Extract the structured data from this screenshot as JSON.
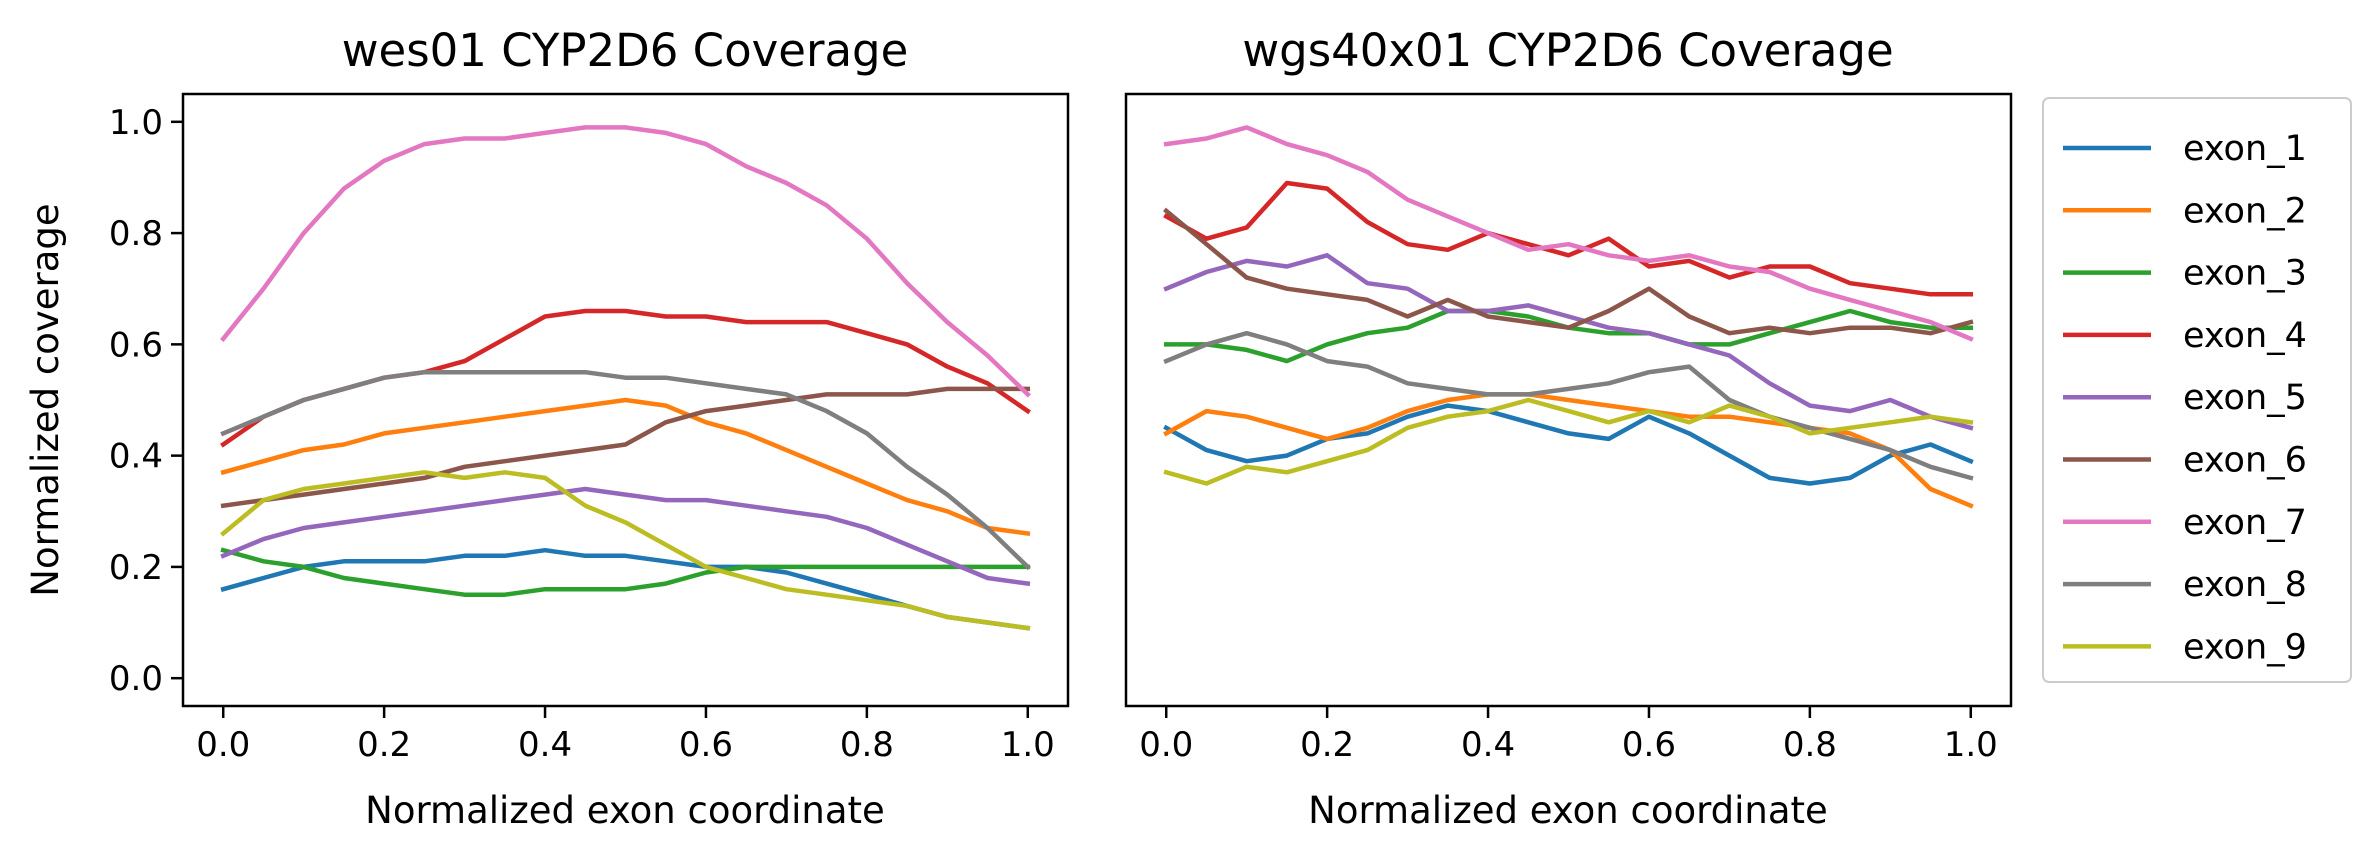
{
  "chart_data": [
    {
      "type": "line",
      "title": "wes01 CYP2D6 Coverage",
      "xlabel": "Normalized exon coordinate",
      "ylabel": "Normalized coverage",
      "xlim": [
        -0.05,
        1.05
      ],
      "ylim": [
        -0.05,
        1.05
      ],
      "xticks": [
        0.0,
        0.2,
        0.4,
        0.6,
        0.8,
        1.0
      ],
      "xtick_labels": [
        "0.0",
        "0.2",
        "0.4",
        "0.6",
        "0.8",
        "1.0"
      ],
      "yticks": [
        0.0,
        0.2,
        0.4,
        0.6,
        0.8,
        1.0
      ],
      "ytick_labels": [
        "0.0",
        "0.2",
        "0.4",
        "0.6",
        "0.8",
        "1.0"
      ],
      "grid": false,
      "series": [
        {
          "name": "exon_1",
          "color": "#1f77b4",
          "x": [
            0,
            0.05,
            0.1,
            0.15,
            0.2,
            0.25,
            0.3,
            0.35,
            0.4,
            0.45,
            0.5,
            0.55,
            0.6,
            0.65,
            0.7,
            0.75,
            0.8,
            0.85,
            0.9,
            0.95,
            1.0
          ],
          "y": [
            0.16,
            0.18,
            0.2,
            0.21,
            0.21,
            0.21,
            0.22,
            0.22,
            0.23,
            0.22,
            0.22,
            0.21,
            0.2,
            0.2,
            0.19,
            0.17,
            0.15,
            0.13,
            0.11,
            0.1,
            0.09
          ]
        },
        {
          "name": "exon_2",
          "color": "#ff7f0e",
          "x": [
            0,
            0.05,
            0.1,
            0.15,
            0.2,
            0.25,
            0.3,
            0.35,
            0.4,
            0.45,
            0.5,
            0.55,
            0.6,
            0.65,
            0.7,
            0.75,
            0.8,
            0.85,
            0.9,
            0.95,
            1.0
          ],
          "y": [
            0.37,
            0.39,
            0.41,
            0.42,
            0.44,
            0.45,
            0.46,
            0.47,
            0.48,
            0.49,
            0.5,
            0.49,
            0.46,
            0.44,
            0.41,
            0.38,
            0.35,
            0.32,
            0.3,
            0.27,
            0.26
          ]
        },
        {
          "name": "exon_3",
          "color": "#2ca02c",
          "x": [
            0,
            0.05,
            0.1,
            0.15,
            0.2,
            0.25,
            0.3,
            0.35,
            0.4,
            0.45,
            0.5,
            0.55,
            0.6,
            0.65,
            0.7,
            0.75,
            0.8,
            0.85,
            0.9,
            0.95,
            1.0
          ],
          "y": [
            0.23,
            0.21,
            0.2,
            0.18,
            0.17,
            0.16,
            0.15,
            0.15,
            0.16,
            0.16,
            0.16,
            0.17,
            0.19,
            0.2,
            0.2,
            0.2,
            0.2,
            0.2,
            0.2,
            0.2,
            0.2
          ]
        },
        {
          "name": "exon_4",
          "color": "#d62728",
          "x": [
            0,
            0.05,
            0.1,
            0.15,
            0.2,
            0.25,
            0.3,
            0.35,
            0.4,
            0.45,
            0.5,
            0.55,
            0.6,
            0.65,
            0.7,
            0.75,
            0.8,
            0.85,
            0.9,
            0.95,
            1.0
          ],
          "y": [
            0.42,
            0.47,
            0.5,
            0.52,
            0.54,
            0.55,
            0.57,
            0.61,
            0.65,
            0.66,
            0.66,
            0.65,
            0.65,
            0.64,
            0.64,
            0.64,
            0.62,
            0.6,
            0.56,
            0.53,
            0.48
          ]
        },
        {
          "name": "exon_5",
          "color": "#9467bd",
          "x": [
            0,
            0.05,
            0.1,
            0.15,
            0.2,
            0.25,
            0.3,
            0.35,
            0.4,
            0.45,
            0.5,
            0.55,
            0.6,
            0.65,
            0.7,
            0.75,
            0.8,
            0.85,
            0.9,
            0.95,
            1.0
          ],
          "y": [
            0.22,
            0.25,
            0.27,
            0.28,
            0.29,
            0.3,
            0.31,
            0.32,
            0.33,
            0.34,
            0.33,
            0.32,
            0.32,
            0.31,
            0.3,
            0.29,
            0.27,
            0.24,
            0.21,
            0.18,
            0.17
          ]
        },
        {
          "name": "exon_6",
          "color": "#8c564b",
          "x": [
            0,
            0.05,
            0.1,
            0.15,
            0.2,
            0.25,
            0.3,
            0.35,
            0.4,
            0.45,
            0.5,
            0.55,
            0.6,
            0.65,
            0.7,
            0.75,
            0.8,
            0.85,
            0.9,
            0.95,
            1.0
          ],
          "y": [
            0.31,
            0.32,
            0.33,
            0.34,
            0.35,
            0.36,
            0.38,
            0.39,
            0.4,
            0.41,
            0.42,
            0.46,
            0.48,
            0.49,
            0.5,
            0.51,
            0.51,
            0.51,
            0.52,
            0.52,
            0.52
          ]
        },
        {
          "name": "exon_7",
          "color": "#e377c2",
          "x": [
            0,
            0.05,
            0.1,
            0.15,
            0.2,
            0.25,
            0.3,
            0.35,
            0.4,
            0.45,
            0.5,
            0.55,
            0.6,
            0.65,
            0.7,
            0.75,
            0.8,
            0.85,
            0.9,
            0.95,
            1.0
          ],
          "y": [
            0.61,
            0.7,
            0.8,
            0.88,
            0.93,
            0.96,
            0.97,
            0.97,
            0.98,
            0.99,
            0.99,
            0.98,
            0.96,
            0.92,
            0.89,
            0.85,
            0.79,
            0.71,
            0.64,
            0.58,
            0.51
          ]
        },
        {
          "name": "exon_8",
          "color": "#7f7f7f",
          "x": [
            0,
            0.05,
            0.1,
            0.15,
            0.2,
            0.25,
            0.3,
            0.35,
            0.4,
            0.45,
            0.5,
            0.55,
            0.6,
            0.65,
            0.7,
            0.75,
            0.8,
            0.85,
            0.9,
            0.95,
            1.0
          ],
          "y": [
            0.44,
            0.47,
            0.5,
            0.52,
            0.54,
            0.55,
            0.55,
            0.55,
            0.55,
            0.55,
            0.54,
            0.54,
            0.53,
            0.52,
            0.51,
            0.48,
            0.44,
            0.38,
            0.33,
            0.27,
            0.2
          ]
        },
        {
          "name": "exon_9",
          "color": "#bcbd22",
          "x": [
            0,
            0.05,
            0.1,
            0.15,
            0.2,
            0.25,
            0.3,
            0.35,
            0.4,
            0.45,
            0.5,
            0.55,
            0.6,
            0.65,
            0.7,
            0.75,
            0.8,
            0.85,
            0.9,
            0.95,
            1.0
          ],
          "y": [
            0.26,
            0.32,
            0.34,
            0.35,
            0.36,
            0.37,
            0.36,
            0.37,
            0.36,
            0.31,
            0.28,
            0.24,
            0.2,
            0.18,
            0.16,
            0.15,
            0.14,
            0.13,
            0.11,
            0.1,
            0.09
          ]
        }
      ]
    },
    {
      "type": "line",
      "title": "wgs40x01 CYP2D6 Coverage",
      "xlabel": "Normalized exon coordinate",
      "ylabel": "",
      "xlim": [
        -0.05,
        1.05
      ],
      "ylim": [
        -0.05,
        1.05
      ],
      "xticks": [
        0.0,
        0.2,
        0.4,
        0.6,
        0.8,
        1.0
      ],
      "xtick_labels": [
        "0.0",
        "0.2",
        "0.4",
        "0.6",
        "0.8",
        "1.0"
      ],
      "yticks": [],
      "ytick_labels": [],
      "grid": false,
      "legend": {
        "placement": "outside-right"
      },
      "series": [
        {
          "name": "exon_1",
          "color": "#1f77b4",
          "x": [
            0,
            0.05,
            0.1,
            0.15,
            0.2,
            0.25,
            0.3,
            0.35,
            0.4,
            0.45,
            0.5,
            0.55,
            0.6,
            0.65,
            0.7,
            0.75,
            0.8,
            0.85,
            0.9,
            0.95,
            1.0
          ],
          "y": [
            0.45,
            0.41,
            0.39,
            0.4,
            0.43,
            0.44,
            0.47,
            0.49,
            0.48,
            0.46,
            0.44,
            0.43,
            0.47,
            0.44,
            0.4,
            0.36,
            0.35,
            0.36,
            0.4,
            0.42,
            0.39
          ]
        },
        {
          "name": "exon_2",
          "color": "#ff7f0e",
          "x": [
            0,
            0.05,
            0.1,
            0.15,
            0.2,
            0.25,
            0.3,
            0.35,
            0.4,
            0.45,
            0.5,
            0.55,
            0.6,
            0.65,
            0.7,
            0.75,
            0.8,
            0.85,
            0.9,
            0.95,
            1.0
          ],
          "y": [
            0.44,
            0.48,
            0.47,
            0.45,
            0.43,
            0.45,
            0.48,
            0.5,
            0.51,
            0.51,
            0.5,
            0.49,
            0.48,
            0.47,
            0.47,
            0.46,
            0.45,
            0.44,
            0.41,
            0.34,
            0.31
          ]
        },
        {
          "name": "exon_3",
          "color": "#2ca02c",
          "x": [
            0,
            0.05,
            0.1,
            0.15,
            0.2,
            0.25,
            0.3,
            0.35,
            0.4,
            0.45,
            0.5,
            0.55,
            0.6,
            0.65,
            0.7,
            0.75,
            0.8,
            0.85,
            0.9,
            0.95,
            1.0
          ],
          "y": [
            0.6,
            0.6,
            0.59,
            0.57,
            0.6,
            0.62,
            0.63,
            0.66,
            0.66,
            0.65,
            0.63,
            0.62,
            0.62,
            0.6,
            0.6,
            0.62,
            0.64,
            0.66,
            0.64,
            0.63,
            0.63
          ]
        },
        {
          "name": "exon_4",
          "color": "#d62728",
          "x": [
            0,
            0.05,
            0.1,
            0.15,
            0.2,
            0.25,
            0.3,
            0.35,
            0.4,
            0.45,
            0.5,
            0.55,
            0.6,
            0.65,
            0.7,
            0.75,
            0.8,
            0.85,
            0.9,
            0.95,
            1.0
          ],
          "y": [
            0.83,
            0.79,
            0.81,
            0.89,
            0.88,
            0.82,
            0.78,
            0.77,
            0.8,
            0.78,
            0.76,
            0.79,
            0.74,
            0.75,
            0.72,
            0.74,
            0.74,
            0.71,
            0.7,
            0.69,
            0.69
          ]
        },
        {
          "name": "exon_5",
          "color": "#9467bd",
          "x": [
            0,
            0.05,
            0.1,
            0.15,
            0.2,
            0.25,
            0.3,
            0.35,
            0.4,
            0.45,
            0.5,
            0.55,
            0.6,
            0.65,
            0.7,
            0.75,
            0.8,
            0.85,
            0.9,
            0.95,
            1.0
          ],
          "y": [
            0.7,
            0.73,
            0.75,
            0.74,
            0.76,
            0.71,
            0.7,
            0.66,
            0.66,
            0.67,
            0.65,
            0.63,
            0.62,
            0.6,
            0.58,
            0.53,
            0.49,
            0.48,
            0.5,
            0.47,
            0.45
          ]
        },
        {
          "name": "exon_6",
          "color": "#8c564b",
          "x": [
            0,
            0.05,
            0.1,
            0.15,
            0.2,
            0.25,
            0.3,
            0.35,
            0.4,
            0.45,
            0.5,
            0.55,
            0.6,
            0.65,
            0.7,
            0.75,
            0.8,
            0.85,
            0.9,
            0.95,
            1.0
          ],
          "y": [
            0.84,
            0.78,
            0.72,
            0.7,
            0.69,
            0.68,
            0.65,
            0.68,
            0.65,
            0.64,
            0.63,
            0.66,
            0.7,
            0.65,
            0.62,
            0.63,
            0.62,
            0.63,
            0.63,
            0.62,
            0.64
          ]
        },
        {
          "name": "exon_7",
          "color": "#e377c2",
          "x": [
            0,
            0.05,
            0.1,
            0.15,
            0.2,
            0.25,
            0.3,
            0.35,
            0.4,
            0.45,
            0.5,
            0.55,
            0.6,
            0.65,
            0.7,
            0.75,
            0.8,
            0.85,
            0.9,
            0.95,
            1.0
          ],
          "y": [
            0.96,
            0.97,
            0.99,
            0.96,
            0.94,
            0.91,
            0.86,
            0.83,
            0.8,
            0.77,
            0.78,
            0.76,
            0.75,
            0.76,
            0.74,
            0.73,
            0.7,
            0.68,
            0.66,
            0.64,
            0.61
          ]
        },
        {
          "name": "exon_8",
          "color": "#7f7f7f",
          "x": [
            0,
            0.05,
            0.1,
            0.15,
            0.2,
            0.25,
            0.3,
            0.35,
            0.4,
            0.45,
            0.5,
            0.55,
            0.6,
            0.65,
            0.7,
            0.75,
            0.8,
            0.85,
            0.9,
            0.95,
            1.0
          ],
          "y": [
            0.57,
            0.6,
            0.62,
            0.6,
            0.57,
            0.56,
            0.53,
            0.52,
            0.51,
            0.51,
            0.52,
            0.53,
            0.55,
            0.56,
            0.5,
            0.47,
            0.45,
            0.43,
            0.41,
            0.38,
            0.36
          ]
        },
        {
          "name": "exon_9",
          "color": "#bcbd22",
          "x": [
            0,
            0.05,
            0.1,
            0.15,
            0.2,
            0.25,
            0.3,
            0.35,
            0.4,
            0.45,
            0.5,
            0.55,
            0.6,
            0.65,
            0.7,
            0.75,
            0.8,
            0.85,
            0.9,
            0.95,
            1.0
          ],
          "y": [
            0.37,
            0.35,
            0.38,
            0.37,
            0.39,
            0.41,
            0.45,
            0.47,
            0.48,
            0.5,
            0.48,
            0.46,
            0.48,
            0.46,
            0.49,
            0.47,
            0.44,
            0.45,
            0.46,
            0.47,
            0.46
          ]
        }
      ]
    }
  ]
}
